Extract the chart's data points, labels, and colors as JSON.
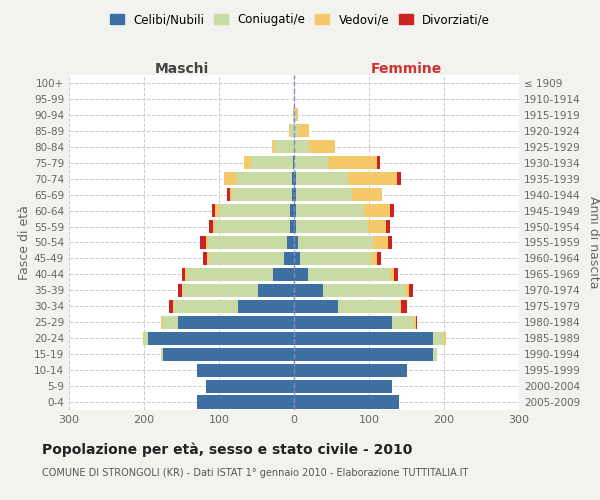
{
  "age_groups": [
    "0-4",
    "5-9",
    "10-14",
    "15-19",
    "20-24",
    "25-29",
    "30-34",
    "35-39",
    "40-44",
    "45-49",
    "50-54",
    "55-59",
    "60-64",
    "65-69",
    "70-74",
    "75-79",
    "80-84",
    "85-89",
    "90-94",
    "95-99",
    "100+"
  ],
  "birth_years": [
    "2005-2009",
    "2000-2004",
    "1995-1999",
    "1990-1994",
    "1985-1989",
    "1980-1984",
    "1975-1979",
    "1970-1974",
    "1965-1969",
    "1960-1964",
    "1955-1959",
    "1950-1954",
    "1945-1949",
    "1940-1944",
    "1935-1939",
    "1930-1934",
    "1925-1929",
    "1920-1924",
    "1915-1919",
    "1910-1914",
    "≤ 1909"
  ],
  "maschi": {
    "celibi": [
      130,
      118,
      130,
      175,
      195,
      155,
      75,
      48,
      28,
      14,
      10,
      5,
      5,
      3,
      3,
      2,
      0,
      0,
      0,
      0,
      0
    ],
    "coniugati": [
      0,
      0,
      0,
      2,
      5,
      20,
      85,
      100,
      115,
      100,
      105,
      100,
      95,
      80,
      75,
      55,
      25,
      5,
      2,
      0,
      0
    ],
    "vedovi": [
      0,
      0,
      0,
      0,
      2,
      2,
      2,
      2,
      2,
      2,
      2,
      3,
      5,
      2,
      15,
      10,
      5,
      2,
      0,
      0,
      0
    ],
    "divorziati": [
      0,
      0,
      0,
      0,
      0,
      0,
      5,
      5,
      5,
      5,
      8,
      5,
      5,
      5,
      0,
      0,
      0,
      0,
      0,
      0,
      0
    ]
  },
  "femmine": {
    "nubili": [
      140,
      130,
      150,
      185,
      185,
      130,
      58,
      38,
      18,
      8,
      5,
      3,
      3,
      2,
      2,
      0,
      0,
      0,
      0,
      0,
      0
    ],
    "coniugate": [
      0,
      0,
      0,
      5,
      15,
      30,
      82,
      110,
      110,
      95,
      100,
      95,
      90,
      75,
      70,
      45,
      20,
      5,
      2,
      0,
      0
    ],
    "vedove": [
      0,
      0,
      0,
      0,
      2,
      2,
      2,
      5,
      5,
      8,
      20,
      25,
      35,
      40,
      65,
      65,
      35,
      15,
      3,
      0,
      0
    ],
    "divorziate": [
      0,
      0,
      0,
      0,
      0,
      2,
      8,
      5,
      5,
      5,
      5,
      5,
      5,
      0,
      5,
      5,
      0,
      0,
      0,
      0,
      0
    ]
  },
  "colors": {
    "celibi": "#3d6fa3",
    "coniugati": "#c8dba4",
    "vedovi": "#f5c96a",
    "divorziati": "#cc2222"
  },
  "xlim": 300,
  "title": "Popolazione per età, sesso e stato civile - 2010",
  "subtitle": "COMUNE DI STRONGOLI (KR) - Dati ISTAT 1° gennaio 2010 - Elaborazione TUTTITALIA.IT",
  "ylabel_left": "Fasce di età",
  "ylabel_right": "Anni di nascita",
  "xlabel_left": "Maschi",
  "xlabel_right": "Femmine",
  "bg_color": "#f2f2ee",
  "plot_bg": "#ffffff"
}
